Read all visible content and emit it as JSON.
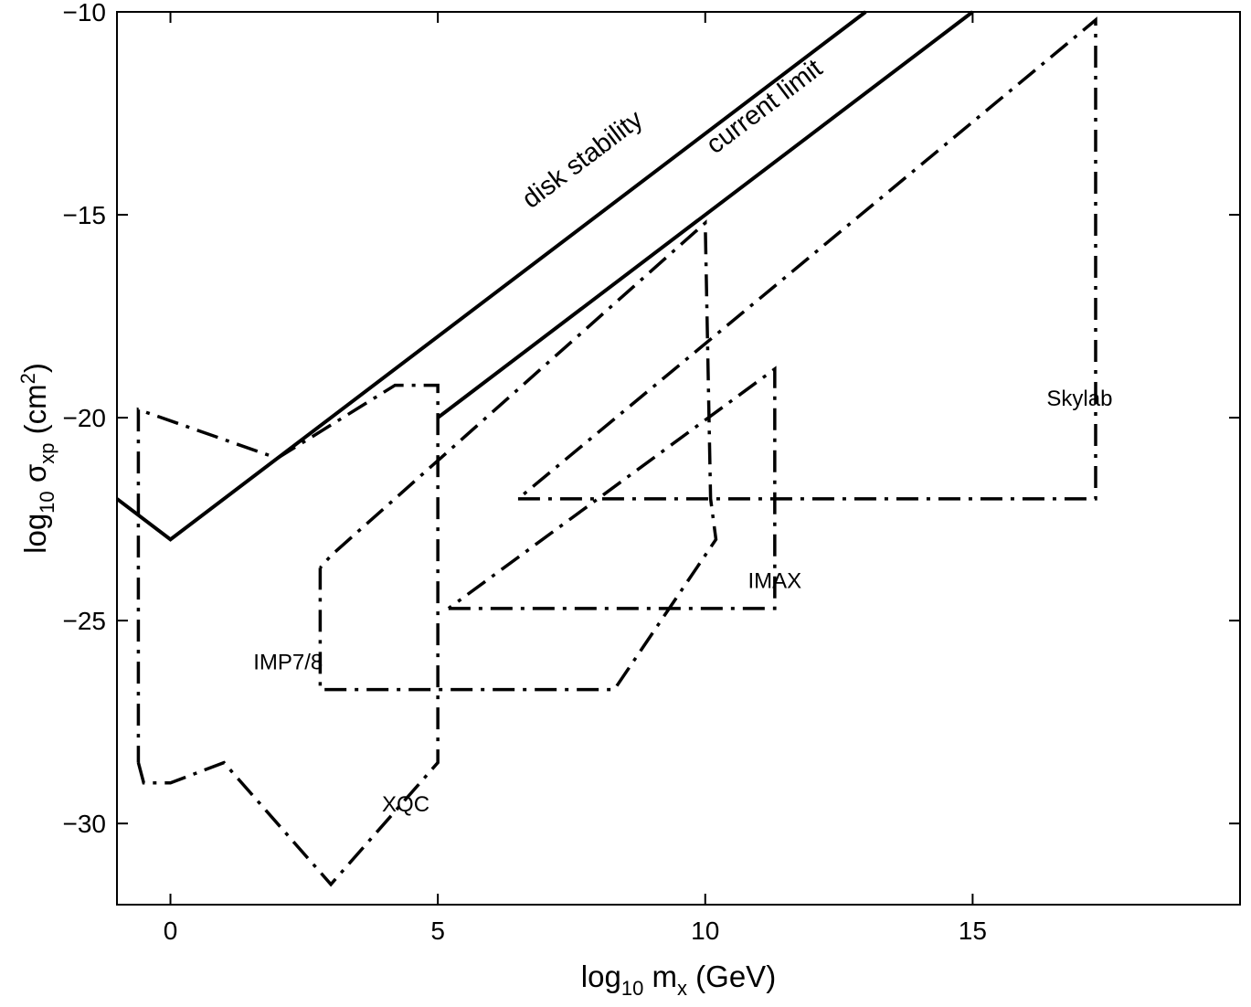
{
  "chart_data": {
    "type": "line",
    "xlabel": "log10 mx (GeV)",
    "ylabel": "log10 σxp (cm2)",
    "xlim": [
      -1,
      20
    ],
    "ylim": [
      -32,
      -10
    ],
    "xticks": [
      0,
      5,
      10,
      15
    ],
    "yticks": [
      -10,
      -15,
      -20,
      -25,
      -30
    ],
    "grid": false,
    "series": [
      {
        "name": "disk stability",
        "style": "solid",
        "x": [
          -1,
          0,
          13
        ],
        "y": [
          -22,
          -23,
          -10
        ]
      },
      {
        "name": "current limit",
        "style": "solid",
        "x": [
          5,
          15
        ],
        "y": [
          -20,
          -10
        ]
      },
      {
        "style": "dash-dot",
        "x": [
          -0.6,
          -0.5,
          0,
          1,
          3,
          5,
          5,
          4.2,
          2,
          -0.6,
          -0.6
        ],
        "y": [
          -28.5,
          -29,
          -29,
          -28.5,
          -31.5,
          -28.5,
          -19.2,
          -19.2,
          -21,
          -19.8,
          -28.5
        ]
      },
      {
        "style": "dash-dot",
        "x": [
          2.8,
          2.8,
          8.3,
          10.2,
          10.1,
          10,
          3,
          2.8
        ],
        "y": [
          -23.7,
          -26.7,
          -26.7,
          -23,
          -22,
          -15.2,
          -23.4,
          -23.7
        ]
      },
      {
        "style": "dash-dot",
        "x": [
          5.2,
          11.3,
          11.3,
          5.2
        ],
        "y": [
          -24.7,
          -24.7,
          -18.8,
          -24.7
        ]
      },
      {
        "style": "dash-dot",
        "x": [
          6.5,
          17.3,
          17.3,
          6.5
        ],
        "y": [
          -22,
          -22,
          -10.2,
          -22
        ]
      }
    ],
    "annotations": [
      {
        "text": "disk stability",
        "x": 7.8,
        "y": -13.8
      },
      {
        "text": "current limit",
        "x": 11.2,
        "y": -12.5
      },
      {
        "text": "Skylab",
        "x": 17.0,
        "y": -19.7
      },
      {
        "text": "IMAX",
        "x": 11.3,
        "y": -24.2
      },
      {
        "text": "IMP7/8",
        "x": 2.2,
        "y": -26.2
      },
      {
        "text": "XQC",
        "x": 4.4,
        "y": -29.7
      }
    ]
  }
}
